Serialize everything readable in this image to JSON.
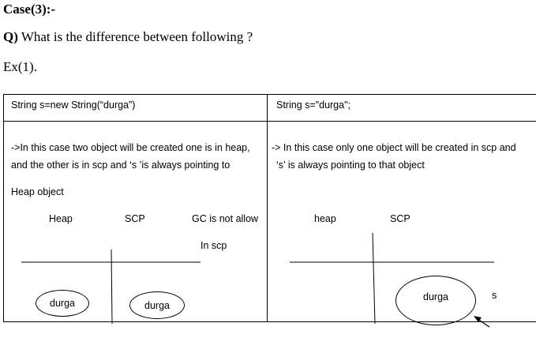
{
  "heading": "Case(3):-",
  "question": {
    "prefix": "Q)",
    "text": " What is the difference between following ?"
  },
  "example_label": "Ex(1).",
  "table": {
    "left": {
      "header": "String s=new String(“durga”)",
      "description_line1": "->In this case two object will be created one is in heap,",
      "description_line2": "and the other is in scp and ‘s ’is always pointing to",
      "description_line3": "Heap object",
      "diagram": {
        "heap_label": "Heap",
        "scp_label": "SCP",
        "gc_note_line1": "GC is not allow",
        "gc_note_line2": "In scp",
        "heap_object": "durga",
        "scp_object": "durga"
      }
    },
    "right": {
      "header": "String s=\"durga\";",
      "description_line1": "-> In this case only one object will be created in scp and",
      "description_line2": "‘s’ is always pointing to that object",
      "diagram": {
        "heap_label": "heap",
        "scp_label": "SCP",
        "scp_object": "durga",
        "reference_label": "s"
      }
    }
  }
}
